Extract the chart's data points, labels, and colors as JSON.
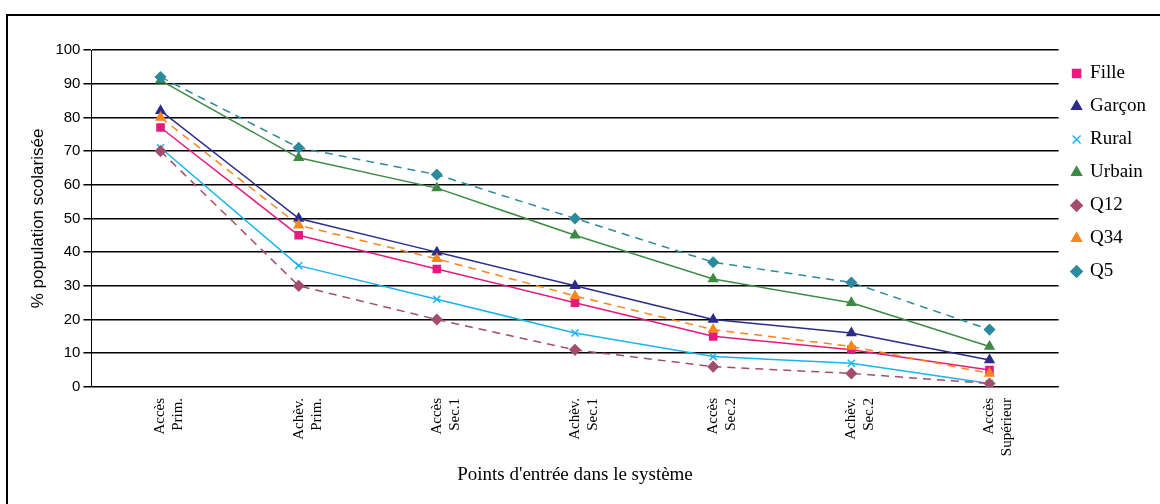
{
  "chart_data": {
    "type": "line",
    "xlabel": "Points d'entrée dans le système",
    "ylabel": "% population scolarisée",
    "categories": [
      "Accès Prim.",
      "Achèv. Prim.",
      "Accès Sec.1",
      "Achèv. Sec.1",
      "Accès Sec.2",
      "Achèv. Sec.2",
      "Accès Supérieur"
    ],
    "series": [
      {
        "name": "Fille",
        "color": "#e6197f",
        "marker": "square",
        "line_style": "solid",
        "values": [
          77,
          45,
          35,
          25,
          15,
          11,
          5
        ]
      },
      {
        "name": "Garçon",
        "color": "#2b2b8c",
        "marker": "triangle",
        "line_style": "solid",
        "values": [
          82,
          50,
          40,
          30,
          20,
          16,
          8
        ]
      },
      {
        "name": "Rural",
        "color": "#1ab4ee",
        "marker": "cross",
        "line_style": "solid",
        "values": [
          71,
          36,
          26,
          16,
          9,
          7,
          1
        ]
      },
      {
        "name": "Urbain",
        "color": "#3d8a45",
        "marker": "triangle",
        "line_style": "solid",
        "values": [
          91,
          68,
          59,
          45,
          32,
          25,
          12
        ]
      },
      {
        "name": "Q12",
        "color": "#a34d6e",
        "marker": "diamond",
        "line_style": "dashed",
        "values": [
          70,
          30,
          20,
          11,
          6,
          4,
          1
        ]
      },
      {
        "name": "Q34",
        "color": "#f7861e",
        "marker": "triangle",
        "line_style": "dashed",
        "values": [
          80,
          48,
          38,
          27,
          17,
          12,
          4
        ]
      },
      {
        "name": "Q5",
        "color": "#2b8a9c",
        "marker": "diamond",
        "line_style": "dashed",
        "values": [
          92,
          71,
          63,
          50,
          37,
          31,
          17
        ]
      }
    ],
    "ylim": [
      0,
      100
    ],
    "yticks": [
      0,
      10,
      20,
      30,
      40,
      50,
      60,
      70,
      80,
      90,
      100
    ],
    "grid": "y",
    "legend": "right"
  }
}
